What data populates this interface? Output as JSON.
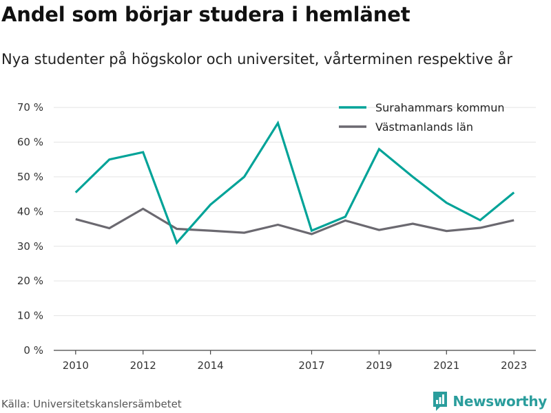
{
  "title": "Andel som börjar studera i hemlänet",
  "subtitle": "Nya studenter på högskolor och universitet, vårterminen respektive år",
  "source": "Källa: Universitetskanslersämbetet",
  "brand": "Newsworthy",
  "chart_data": {
    "type": "line",
    "x": [
      2010,
      2011,
      2012,
      2013,
      2014,
      2015,
      2016,
      2017,
      2018,
      2019,
      2020,
      2021,
      2022,
      2023
    ],
    "x_tick_values": [
      2010,
      2012,
      2014,
      2017,
      2019,
      2021,
      2023
    ],
    "x_tick_labels": [
      "2010",
      "2012",
      "2014",
      "2017",
      "2019",
      "2021",
      "2023"
    ],
    "y_ticks": [
      0,
      10,
      20,
      30,
      40,
      50,
      60,
      70
    ],
    "y_tick_labels": [
      "0 %",
      "10 %",
      "20 %",
      "30 %",
      "40 %",
      "50 %",
      "60 %",
      "70 %"
    ],
    "ylim": [
      0,
      72
    ],
    "xlim": [
      2009.35,
      2023.65
    ],
    "grid": true,
    "legend_position": "top-right",
    "series": [
      {
        "name": "Surahammars kommun",
        "color": "#00a398",
        "values": [
          45.5,
          55.0,
          57.1,
          31.0,
          42.0,
          50.0,
          65.5,
          34.5,
          38.5,
          58.0,
          50.0,
          42.5,
          37.5,
          45.5
        ]
      },
      {
        "name": "Västmanlands län",
        "color": "#6b6970",
        "values": [
          37.8,
          35.2,
          40.8,
          35.0,
          34.5,
          33.9,
          36.2,
          33.5,
          37.4,
          34.7,
          36.5,
          34.4,
          35.3,
          37.5
        ]
      }
    ]
  }
}
